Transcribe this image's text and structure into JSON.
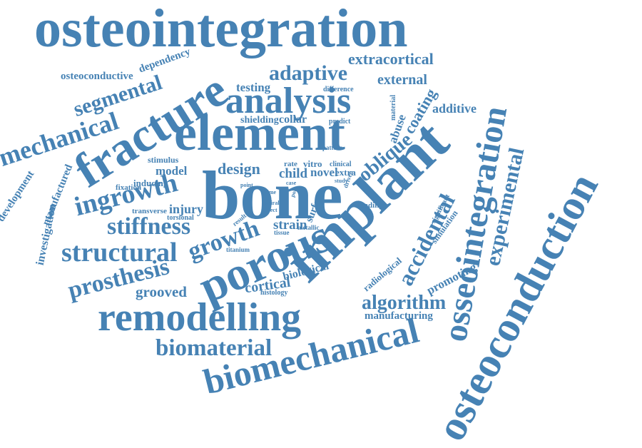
{
  "word_cloud": {
    "color": "#4682b4",
    "words": {
      "osteointegration": "osteointegration",
      "extracortical": "extracortical",
      "dependency": "dependency",
      "osteoconductive": "osteoconductive",
      "adaptive": "adaptive",
      "segmental": "segmental",
      "fracture": "fracture",
      "analysis": "analysis",
      "testing": "testing",
      "difference": "difference",
      "external": "external",
      "mechanical": "mechanical",
      "element": "element",
      "shielding": "shielding",
      "collar": "collar",
      "predict": "predict",
      "coating": "coating",
      "additive": "additive",
      "material": "material",
      "abuse": "abuse",
      "oblique": "oblique",
      "pattern": "pattern",
      "stimulus": "stimulus",
      "development": "development",
      "manufactured": "manufactured",
      "model": "model",
      "design": "design",
      "rate": "rate",
      "child": "child",
      "novel": "novel",
      "clinical": "clinical",
      "extra": "extra",
      "vitro": "vitro",
      "driven": "driven",
      "inducing": "inducing",
      "fixation": "fixation",
      "ingrowth": "ingrowth",
      "bone": "bone",
      "implant": "implant",
      "point": "point",
      "case": "case",
      "study": "study",
      "time": "time",
      "pore": "pore",
      "spiral": "spiral",
      "effect": "effect",
      "significant": "significant",
      "transverse": "transverse",
      "injury": "injury",
      "torsional": "torsional",
      "investigation": "investigation",
      "stiffness": "stiffness",
      "growth": "growth",
      "result": "result",
      "strain": "strain",
      "tissue": "tissue",
      "surface": "surface",
      "loading": "loading",
      "metallic": "metallic",
      "accidental": "accidental",
      "simulation": "simulation",
      "osseointegration": "osseointegration",
      "experimental": "experimental",
      "structural": "structural",
      "porous": "porous",
      "titanium": "titanium",
      "biological": "biological",
      "prosthesis": "prosthesis",
      "radiological": "radiological",
      "promoting": "promoting",
      "cortical": "cortical",
      "grooved": "grooved",
      "histology": "histology",
      "remodelling": "remodelling",
      "algorithm": "algorithm",
      "manufacturing": "manufacturing",
      "biomaterial": "biomaterial",
      "biomechanical": "biomechanical",
      "osteoconduction": "osteoconduction"
    }
  }
}
